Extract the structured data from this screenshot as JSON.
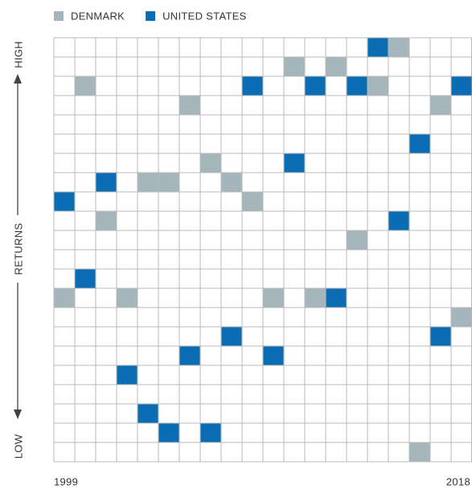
{
  "chart_data": {
    "type": "rank_grid",
    "y_axis_labels": {
      "top": "HIGH",
      "middle": "RETURNS",
      "bottom": "LOW"
    },
    "categories": [
      "1999",
      null,
      null,
      null,
      null,
      null,
      null,
      null,
      null,
      null,
      null,
      null,
      null,
      null,
      null,
      null,
      null,
      null,
      null,
      "2018"
    ],
    "ylim": [
      1,
      22
    ],
    "y_inverted": true,
    "series": [
      {
        "name": "DENMARK",
        "color": "#a4b6bc",
        "values": [
          14,
          3,
          10,
          14,
          8,
          8,
          4,
          7,
          8,
          9,
          14,
          2,
          14,
          2,
          11,
          3,
          1,
          22,
          4,
          15
        ]
      },
      {
        "name": "UNITED STATES",
        "color": "#0b6db3",
        "values": [
          9,
          13,
          8,
          18,
          20,
          21,
          17,
          21,
          16,
          3,
          17,
          7,
          3,
          14,
          3,
          1,
          10,
          6,
          16,
          3
        ]
      }
    ]
  }
}
